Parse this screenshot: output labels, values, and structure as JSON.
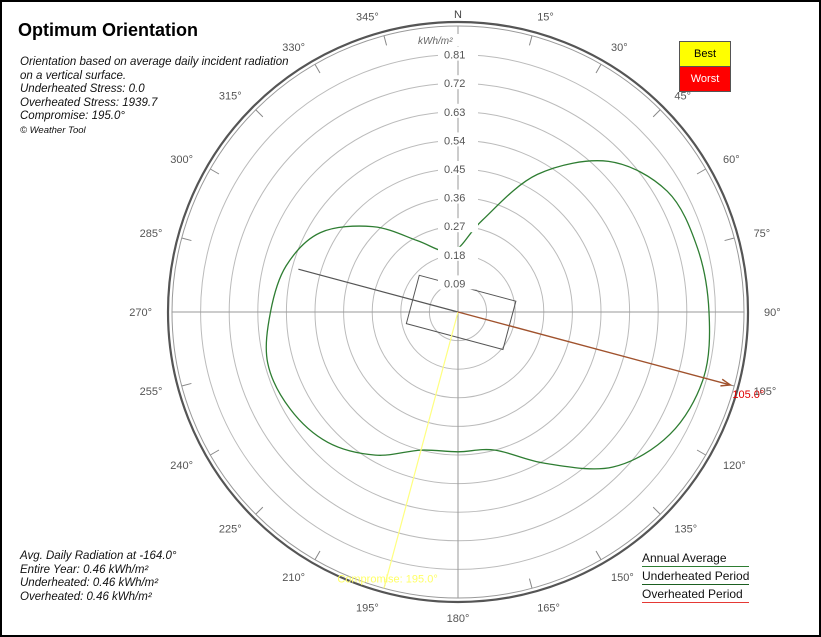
{
  "title": "Optimum Orientation",
  "info": {
    "description": "Orientation based on average daily incident radiation on a vertical surface.",
    "underheated_stress": "Underheated Stress: 0.0",
    "overheated_stress": "Overheated Stress: 1939.7",
    "compromise": "Compromise: 195.0°",
    "credit": "© Weather Tool"
  },
  "summary": {
    "heading": "Avg. Daily Radiation at -164.0°",
    "entire_year": "Entire Year: 0.46 kWh/m²",
    "underheated": "Underheated: 0.46 kWh/m²",
    "overheated": "Overheated: 0.46 kWh/m²"
  },
  "best_worst": {
    "best": "Best",
    "worst": "Worst"
  },
  "series_legend": [
    {
      "name": "Annual Average",
      "color": "#2e7d32"
    },
    {
      "name": "Underheated Period",
      "color": "#1b5e20"
    },
    {
      "name": "Overheated Period",
      "color": "#e53935"
    }
  ],
  "chart_data": {
    "type": "polar",
    "north_label": "N",
    "unit_label": "kWh/m²",
    "radial_ticks": [
      "0.09",
      "0.18",
      "0.27",
      "0.36",
      "0.45",
      "0.54",
      "0.63",
      "0.72",
      "0.81"
    ],
    "angle_labels": [
      "15°",
      "30°",
      "45°",
      "60°",
      "75°",
      "90°",
      "105°",
      "120°",
      "135°",
      "150°",
      "165°",
      "180°",
      "195°",
      "210°",
      "225°",
      "240°",
      "255°",
      "270°",
      "285°",
      "300°",
      "315°",
      "330°",
      "345°"
    ],
    "radial_max": 0.9,
    "best_angle": 105.0,
    "best_label": "105.0°",
    "compromise_angle": 195.0,
    "compromise_label": "Compromise: 195.0°",
    "worst_angle": 285.0,
    "colors": {
      "annual": "#2e7d32",
      "best": "#a0522d",
      "best_label": "#e00000",
      "compromise": "#ffff80",
      "worst": "#555555"
    },
    "series": [
      {
        "name": "Annual Average",
        "angles": [
          0,
          15,
          30,
          45,
          60,
          75,
          90,
          105,
          120,
          135,
          150,
          165,
          180,
          195,
          210,
          225,
          240,
          255,
          270,
          285,
          300,
          315,
          330,
          345
        ],
        "values": [
          0.2,
          0.3,
          0.5,
          0.67,
          0.76,
          0.78,
          0.79,
          0.8,
          0.77,
          0.69,
          0.55,
          0.45,
          0.44,
          0.45,
          0.52,
          0.58,
          0.61,
          0.62,
          0.59,
          0.56,
          0.5,
          0.38,
          0.26,
          0.2
        ]
      }
    ]
  }
}
